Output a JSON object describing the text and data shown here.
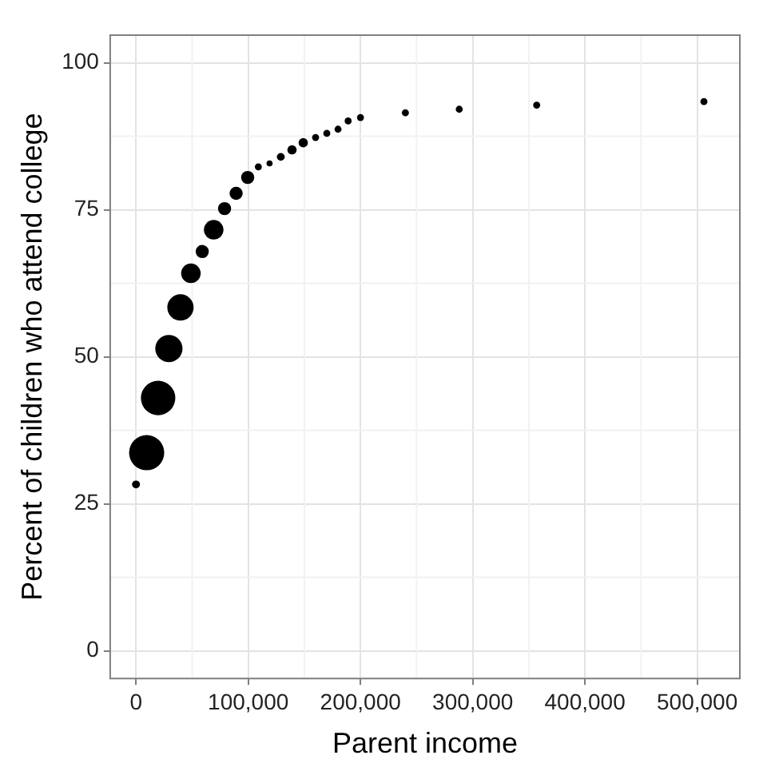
{
  "chart_data": {
    "type": "bubble",
    "xlabel": "Parent income",
    "ylabel": "Percent of children who attend college",
    "relative": false,
    "x": [
      0,
      9500,
      19700,
      29300,
      39600,
      48900,
      59000,
      69200,
      78900,
      89200,
      99500,
      109000,
      119000,
      129000,
      139000,
      149000,
      160000,
      170000,
      180000,
      189000,
      200000,
      240000,
      288000,
      357000,
      506000
    ],
    "values": [
      28.3,
      33.7,
      43.0,
      51.4,
      58.4,
      64.2,
      67.9,
      71.6,
      75.2,
      77.8,
      80.5,
      82.3,
      82.9,
      84.0,
      85.2,
      86.4,
      87.3,
      88.0,
      88.7,
      90.1,
      90.7,
      91.5,
      92.1,
      92.8,
      93.4
    ],
    "sizes": [
      0.05,
      1,
      0.96,
      0.6,
      0.56,
      0.31,
      0.14,
      0.31,
      0.14,
      0.14,
      0.14,
      0.04,
      0.03,
      0.05,
      0.07,
      0.07,
      0.04,
      0.04,
      0.04,
      0.04,
      0.04,
      0.04,
      0.04,
      0.04,
      0.04
    ],
    "color": "#000000",
    "xlim": [
      -23000,
      538000
    ],
    "xticks": [
      {
        "value": 0,
        "label": "0"
      },
      {
        "value": 100000,
        "label": "100,000"
      },
      {
        "value": 200000,
        "label": "200,000"
      },
      {
        "value": 300000,
        "label": "300,000"
      },
      {
        "value": 400000,
        "label": "400,000"
      },
      {
        "value": 500000,
        "label": "500,000"
      }
    ],
    "ylim": [
      -4.7,
      104.7
    ],
    "yticks": [
      0,
      25,
      50,
      75,
      100
    ],
    "grid": true,
    "legend": false
  }
}
